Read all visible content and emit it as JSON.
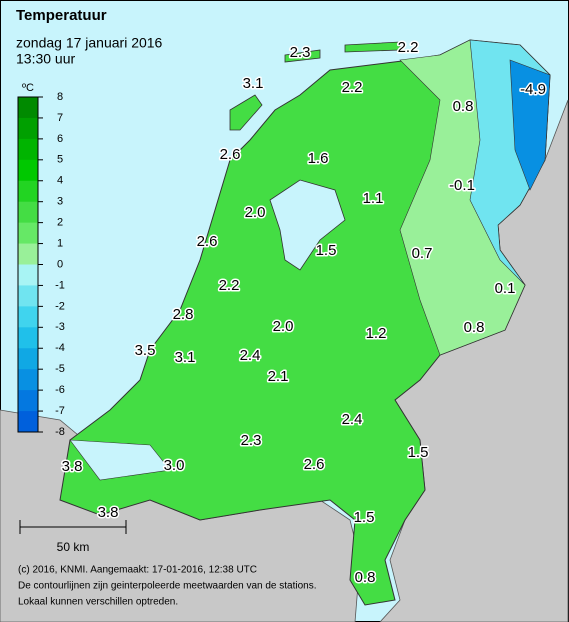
{
  "header": {
    "title": "Temperatuur",
    "date": "zondag 17 januari 2016",
    "time": "13:30 uur"
  },
  "legend": {
    "unit": "ºC",
    "ticks": [
      "8",
      "7",
      "6",
      "5",
      "4",
      "3",
      "2",
      "1",
      "0",
      "-1",
      "-2",
      "-3",
      "-4",
      "-5",
      "-6",
      "-7",
      "-8"
    ],
    "colors": [
      "#008a00",
      "#00a000",
      "#00b400",
      "#00c800",
      "#22d422",
      "#44dd44",
      "#66e866",
      "#99f099",
      "#a8f4f4",
      "#70e4f0",
      "#40d4ee",
      "#20c0ea",
      "#10a8e4",
      "#0890e2",
      "#0478e0",
      "#0060dc"
    ]
  },
  "stations": [
    "2.3",
    "2.2",
    "3.1",
    "2.2",
    "0.8",
    "-4.9",
    "2.6",
    "1.6",
    "-0.1",
    "1.1",
    "2.0",
    "2.6",
    "1.5",
    "0.7",
    "0.1",
    "2.2",
    "2.8",
    "2.0",
    "1.2",
    "0.8",
    "3.5",
    "3.1",
    "2.4",
    "2.1",
    "2.4",
    "1.5",
    "2.3",
    "2.6",
    "3.8",
    "3.0",
    "3.8",
    "1.5",
    "0.8"
  ],
  "scale": "50 km",
  "footer": [
    "(c) 2016, KNMI. Aangemaakt: 17-01-2016, 12:38 UTC",
    "De contourlijnen zijn geinterpoleerde meetwaarden van de stations.",
    "Lokaal kunnen verschillen optreden."
  ]
}
